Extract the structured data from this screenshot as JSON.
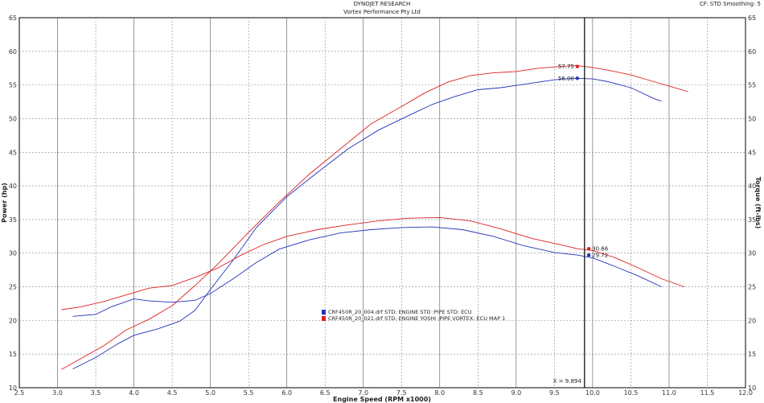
{
  "header": {
    "company": "DYNOJET RESEARCH",
    "customer": "Vortex Performance Pty Ltd",
    "settings": "CF: STD   Smoothing: 5"
  },
  "chart_data": {
    "type": "line",
    "xlabel": "Engine Speed (RPM x1000)",
    "ylabel_left": "Power (hp)",
    "ylabel_right": "Torque (ft-lbs)",
    "xlim": [
      2.5,
      12.0
    ],
    "ylim": [
      10,
      65
    ],
    "x_ticks": [
      "2.5",
      "3.0",
      "3.5",
      "4.0",
      "4.5",
      "5.0",
      "5.5",
      "6.0",
      "6.5",
      "7.0",
      "7.5",
      "8.0",
      "8.5",
      "9.0",
      "9.5",
      "10.0",
      "10.5",
      "11.0",
      "11.5",
      "12.0"
    ],
    "y_ticks": [
      "10",
      "15",
      "20",
      "25",
      "30",
      "35",
      "40",
      "45",
      "50",
      "55",
      "60",
      "65"
    ],
    "grid": true,
    "cursor": {
      "x": 9.894,
      "label": "X = 9.894"
    },
    "legend": [
      {
        "text": "CRF450R_20_004.drf STD: ENGINE STD :PIPE STD: ECU",
        "color": "#2233bb"
      },
      {
        "text": "CRF450R_20_021.drf STD: ENGINE YOSHI :PIPE VORTEX: ECU MAP 1",
        "color": "#dd2222"
      }
    ],
    "series": [
      {
        "color": "#dd2222",
        "x": [
          3.05,
          3.3,
          3.6,
          3.9,
          4.2,
          4.5,
          4.8,
          5.1,
          5.5,
          5.9,
          6.3,
          6.7,
          7.1,
          7.5,
          7.8,
          8.1,
          8.4,
          8.7,
          9.0,
          9.3,
          9.6,
          9.8,
          10.0,
          10.2,
          10.5,
          10.8,
          11.1,
          11.25
        ],
        "values": [
          12.7,
          14.3,
          16.2,
          18.6,
          20.2,
          22.2,
          25.2,
          28.4,
          33.1,
          37.6,
          41.8,
          45.5,
          49.2,
          51.8,
          53.8,
          55.4,
          56.4,
          56.8,
          57.0,
          57.5,
          57.75,
          57.9,
          57.6,
          57.2,
          56.5,
          55.5,
          54.5,
          54.0
        ]
      },
      {
        "color": "#2233bb",
        "x": [
          3.2,
          3.5,
          3.8,
          4.0,
          4.3,
          4.6,
          4.8,
          5.0,
          5.3,
          5.6,
          6.0,
          6.4,
          6.8,
          7.2,
          7.6,
          7.9,
          8.2,
          8.5,
          8.8,
          9.1,
          9.4,
          9.6,
          9.8,
          10.0,
          10.2,
          10.5,
          10.8,
          10.9
        ],
        "values": [
          12.8,
          14.5,
          16.6,
          17.8,
          18.7,
          19.9,
          21.5,
          24.6,
          29.0,
          33.8,
          38.4,
          42.0,
          45.5,
          48.3,
          50.5,
          52.1,
          53.3,
          54.3,
          54.6,
          55.1,
          55.6,
          55.9,
          56.0,
          55.9,
          55.5,
          54.6,
          53.0,
          52.6
        ]
      },
      {
        "color": "#dd2222",
        "x": [
          3.05,
          3.3,
          3.6,
          3.9,
          4.2,
          4.5,
          4.8,
          5.1,
          5.4,
          5.7,
          6.0,
          6.4,
          6.8,
          7.2,
          7.6,
          8.0,
          8.4,
          8.8,
          9.2,
          9.6,
          9.8,
          10.0,
          10.3,
          10.6,
          10.9,
          11.2
        ],
        "values": [
          21.6,
          22.0,
          22.8,
          23.8,
          24.8,
          25.2,
          26.4,
          27.8,
          29.7,
          31.3,
          32.5,
          33.5,
          34.2,
          34.8,
          35.2,
          35.3,
          34.8,
          33.6,
          32.2,
          31.2,
          30.66,
          30.4,
          29.3,
          27.8,
          26.2,
          25.0
        ]
      },
      {
        "color": "#2233bb",
        "x": [
          3.2,
          3.5,
          3.7,
          4.0,
          4.2,
          4.5,
          4.8,
          5.0,
          5.3,
          5.6,
          5.9,
          6.3,
          6.7,
          7.1,
          7.5,
          7.9,
          8.3,
          8.7,
          9.1,
          9.5,
          9.8,
          10.0,
          10.3,
          10.6,
          10.9
        ],
        "values": [
          20.6,
          20.9,
          22.0,
          23.2,
          22.9,
          22.7,
          23.0,
          24.0,
          26.2,
          28.6,
          30.6,
          32.0,
          33.0,
          33.5,
          33.8,
          33.9,
          33.5,
          32.5,
          31.1,
          30.1,
          29.72,
          29.3,
          28.0,
          26.6,
          25.0
        ]
      }
    ],
    "annotations": [
      {
        "x": 9.8,
        "y": 57.75,
        "text": "57.75",
        "color": "#dd2222",
        "side": "left"
      },
      {
        "x": 9.8,
        "y": 56.0,
        "text": "56.00",
        "color": "#2233bb",
        "side": "left"
      },
      {
        "x": 9.95,
        "y": 30.66,
        "text": "30.66",
        "color": "#dd2222",
        "side": "right"
      },
      {
        "x": 9.95,
        "y": 29.72,
        "text": "29.72",
        "color": "#2233bb",
        "side": "right"
      }
    ]
  }
}
